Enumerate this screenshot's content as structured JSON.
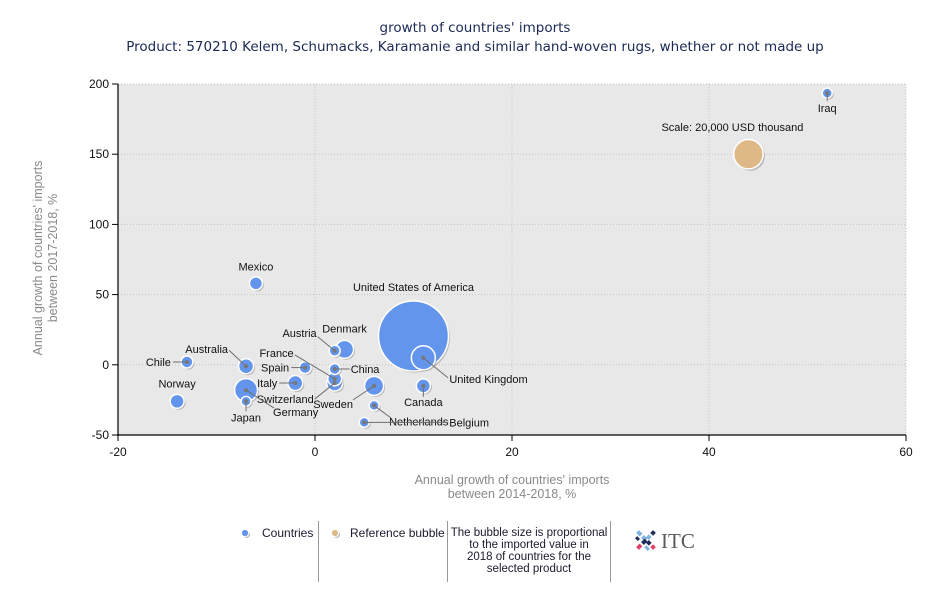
{
  "chart_data": {
    "type": "scatter",
    "subtype": "bubble",
    "title": "growth of countries' imports",
    "subtitle": "Product: 570210 Kelem, Schumacks, Karamanie and similar hand-woven rugs, whether or not made up",
    "xlabel_lines": [
      "Annual growth of countries' imports",
      "between 2014-2018, %"
    ],
    "ylabel_lines": [
      "Annual growth of countries' imports",
      "between 2017-2018, %"
    ],
    "xlim": [
      -20,
      60
    ],
    "ylim": [
      -50,
      200
    ],
    "xticks": [
      -20,
      0,
      20,
      40,
      60
    ],
    "yticks": [
      -50,
      0,
      50,
      100,
      150,
      200
    ],
    "grid": true,
    "size_encoding": "imported value in 2018 (USD thousand, estimated from bubble area)",
    "series": [
      {
        "name": "Countries",
        "color": "#6495ED",
        "points": [
          {
            "label": "Iraq",
            "x": 52,
            "y": 193.5,
            "size": 2300
          },
          {
            "label": "Mexico",
            "x": -6,
            "y": 58,
            "size": 3900
          },
          {
            "label": "United States of America",
            "x": 10,
            "y": 20.5,
            "size": 113400
          },
          {
            "label": "United Kingdom",
            "x": 11,
            "y": 5,
            "size": 13300
          },
          {
            "label": "Canada",
            "x": 11,
            "y": -15,
            "size": 4500
          },
          {
            "label": "Netherlands",
            "x": 6,
            "y": -29,
            "size": 2300
          },
          {
            "label": "Belgium",
            "x": 5,
            "y": -41,
            "size": 2300
          },
          {
            "label": "Sweden",
            "x": 6,
            "y": -15,
            "size": 8400
          },
          {
            "label": "China",
            "x": 2,
            "y": -3,
            "size": 2800
          },
          {
            "label": "Denmark",
            "x": 3,
            "y": 11,
            "size": 7500
          },
          {
            "label": "Austria",
            "x": 2,
            "y": 10,
            "size": 2800
          },
          {
            "label": "France",
            "x": 2,
            "y": -10,
            "size": 4500
          },
          {
            "label": "Switzerland",
            "x": 2,
            "y": -13,
            "size": 5900
          },
          {
            "label": "Germany",
            "x": -7,
            "y": -18,
            "size": 12200
          },
          {
            "label": "Italy",
            "x": -2,
            "y": -13,
            "size": 5200
          },
          {
            "label": "Spain",
            "x": -1,
            "y": -2,
            "size": 3300
          },
          {
            "label": "Australia",
            "x": -7,
            "y": -1,
            "size": 5200
          },
          {
            "label": "Chile",
            "x": -13,
            "y": 2,
            "size": 3300
          },
          {
            "label": "Norway",
            "x": -14,
            "y": -26,
            "size": 4500
          },
          {
            "label": "Japan",
            "x": -7,
            "y": -26,
            "size": 2300
          }
        ]
      }
    ],
    "reference_bubble": {
      "name": "Reference bubble",
      "label": "Scale: 20,000 USD thousand",
      "x": 44,
      "y": 150,
      "size": 20000,
      "color": "#DEB887"
    }
  },
  "legend": {
    "items": [
      {
        "label": "Countries",
        "color": "#6495ED"
      },
      {
        "label": "Reference bubble",
        "color": "#DEB887"
      }
    ],
    "note_lines": [
      "The bubble size is proportional",
      "to the imported value in",
      "2018 of countries for the",
      "selected product"
    ]
  },
  "logo": {
    "text": "ITC",
    "colors": [
      "#7fb2df",
      "#e0436a",
      "#1d2b5a"
    ]
  },
  "colors": {
    "plot_background": "#E8E8E8",
    "title": "#1b2a55",
    "axis_title": "#8a8a8a"
  }
}
